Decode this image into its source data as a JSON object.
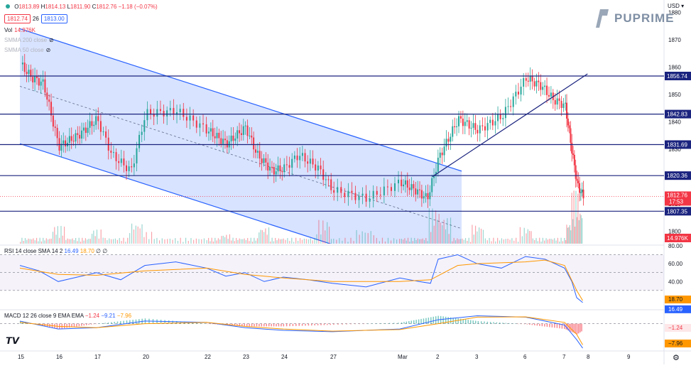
{
  "header": {
    "ohlc": {
      "o_label": "O",
      "o": "1813.89",
      "h_label": "H",
      "h": "1814.13",
      "l_label": "L",
      "l": "1811.90",
      "c_label": "C",
      "c": "1812.76",
      "change": "−1.18 (−0.07%)"
    },
    "bid": "1812.74",
    "spread": "26",
    "ask": "1813.00",
    "vol_label": "Vol",
    "vol_value": "14.976K",
    "smma200": "SMMA 200 close",
    "smma50": "SMMA 50 close",
    "currency": "USD",
    "brand": "PUPRIME"
  },
  "colors": {
    "up": "#26a69a",
    "down": "#f23645",
    "level": "#1a237e",
    "channel": "#2962ff",
    "channel_fill": "#2962ff",
    "rsi": "#2962ff",
    "rsi_ma": "#ff9800",
    "macd": "#2962ff",
    "signal": "#ff9800"
  },
  "chart_data": [
    {
      "type": "candlestick",
      "title": "",
      "x_ticks": [
        "15",
        "16",
        "17",
        "20",
        "22",
        "23",
        "24",
        "27",
        "Mar",
        "2",
        "3",
        "6",
        "7",
        "8",
        "9"
      ],
      "y_ticks": [
        1800,
        1810,
        1820,
        1830,
        1840,
        1850,
        1860,
        1870,
        1880
      ],
      "ylim": [
        1795.5,
        1884.5
      ],
      "levels": [
        {
          "value": 1856.74,
          "label": "1856.74"
        },
        {
          "value": 1842.83,
          "label": "1842.83"
        },
        {
          "value": 1831.69,
          "label": "1831.69"
        },
        {
          "value": 1820.36,
          "label": "1820.36"
        },
        {
          "value": 1807.35,
          "label": "1807.35"
        }
      ],
      "last_price": {
        "value": 1812.76,
        "label": "1812.76",
        "countdown": "17:53"
      },
      "volume_label": "14.976K",
      "close_path": [
        {
          "t": 0,
          "c": 1861
        },
        {
          "t": 0.3,
          "c": 1856
        },
        {
          "t": 0.6,
          "c": 1854
        },
        {
          "t": 1,
          "c": 1831
        },
        {
          "t": 1.5,
          "c": 1835
        },
        {
          "t": 2,
          "c": 1841
        },
        {
          "t": 2.3,
          "c": 1828
        },
        {
          "t": 2.7,
          "c": 1822
        },
        {
          "t": 3,
          "c": 1843
        },
        {
          "t": 3.5,
          "c": 1844
        },
        {
          "t": 4,
          "c": 1837
        },
        {
          "t": 4.5,
          "c": 1832
        },
        {
          "t": 5,
          "c": 1838
        },
        {
          "t": 5.3,
          "c": 1828
        },
        {
          "t": 5.7,
          "c": 1822
        },
        {
          "t": 6,
          "c": 1823
        },
        {
          "t": 6.3,
          "c": 1828
        },
        {
          "t": 6.7,
          "c": 1823
        },
        {
          "t": 7,
          "c": 1815
        },
        {
          "t": 7.5,
          "c": 1812
        },
        {
          "t": 8,
          "c": 1818
        },
        {
          "t": 8.4,
          "c": 1815
        },
        {
          "t": 8.7,
          "c": 1812
        },
        {
          "t": 9,
          "c": 1827
        },
        {
          "t": 9.5,
          "c": 1841
        },
        {
          "t": 10,
          "c": 1837
        },
        {
          "t": 10.5,
          "c": 1842
        },
        {
          "t": 11,
          "c": 1856
        },
        {
          "t": 11.4,
          "c": 1853
        },
        {
          "t": 11.7,
          "c": 1848
        },
        {
          "t": 12,
          "c": 1846
        },
        {
          "t": 12.3,
          "c": 1828
        },
        {
          "t": 12.5,
          "c": 1817
        },
        {
          "t": 12.75,
          "c": 1812.76
        }
      ],
      "volumes": [
        {
          "t": 1,
          "v": 15
        },
        {
          "t": 2,
          "v": 12
        },
        {
          "t": 2.8,
          "v": 18
        },
        {
          "t": 3,
          "v": 10
        },
        {
          "t": 4.5,
          "v": 8
        },
        {
          "t": 5.5,
          "v": 14
        },
        {
          "t": 6.8,
          "v": 20
        },
        {
          "t": 7.5,
          "v": 12
        },
        {
          "t": 8.9,
          "v": 30
        },
        {
          "t": 9.2,
          "v": 22
        },
        {
          "t": 10,
          "v": 16
        },
        {
          "t": 11,
          "v": 14
        },
        {
          "t": 12.2,
          "v": 18
        },
        {
          "t": 12.4,
          "v": 45
        },
        {
          "t": 12.6,
          "v": 30
        }
      ]
    },
    {
      "type": "line",
      "title": "RSI 14 close SMA 14 2",
      "ylim": [
        10,
        80
      ],
      "y_ticks": [
        40,
        60,
        80
      ],
      "band": [
        30,
        70
      ],
      "value": "16.49",
      "ma": "18.70",
      "extra": "∅ ∅",
      "series": [
        {
          "name": "RSI",
          "values": [
            [
              0,
              58
            ],
            [
              0.5,
              52
            ],
            [
              1,
              40
            ],
            [
              1.5,
              45
            ],
            [
              2,
              50
            ],
            [
              2.5,
              42
            ],
            [
              3,
              58
            ],
            [
              3.5,
              62
            ],
            [
              4,
              55
            ],
            [
              4.5,
              46
            ],
            [
              5,
              50
            ],
            [
              5.5,
              40
            ],
            [
              6,
              45
            ],
            [
              6.5,
              42
            ],
            [
              7,
              38
            ],
            [
              7.5,
              34
            ],
            [
              8,
              44
            ],
            [
              8.5,
              40
            ],
            [
              8.8,
              38
            ],
            [
              9,
              65
            ],
            [
              9.5,
              70
            ],
            [
              10,
              60
            ],
            [
              10.5,
              55
            ],
            [
              11,
              68
            ],
            [
              11.5,
              65
            ],
            [
              12,
              55
            ],
            [
              12.3,
              40
            ],
            [
              12.5,
              22
            ],
            [
              12.75,
              16.49
            ]
          ]
        },
        {
          "name": "SMA",
          "values": [
            [
              0,
              55
            ],
            [
              1,
              48
            ],
            [
              2,
              47
            ],
            [
              3,
              52
            ],
            [
              4,
              55
            ],
            [
              5,
              48
            ],
            [
              6,
              44
            ],
            [
              7,
              40
            ],
            [
              8,
              40
            ],
            [
              8.8,
              42
            ],
            [
              9.5,
              58
            ],
            [
              10,
              60
            ],
            [
              11,
              62
            ],
            [
              11.5,
              64
            ],
            [
              12,
              58
            ],
            [
              12.5,
              30
            ],
            [
              12.75,
              18.7
            ]
          ]
        }
      ]
    },
    {
      "type": "line",
      "title": "MACD 12 26 close 9 EMA EMA",
      "value_hist": "−1.24",
      "value_macd": "−9.21",
      "value_signal": "−7.96",
      "ylim": [
        -10,
        5
      ],
      "series": [
        {
          "name": "MACD",
          "values": [
            [
              0,
              1
            ],
            [
              1,
              -2
            ],
            [
              2,
              -1.5
            ],
            [
              3,
              1
            ],
            [
              4,
              0.5
            ],
            [
              5,
              -1.5
            ],
            [
              6,
              -2.5
            ],
            [
              7,
              -3
            ],
            [
              8,
              -2
            ],
            [
              9,
              1.5
            ],
            [
              10,
              3
            ],
            [
              11,
              2.5
            ],
            [
              12,
              -0.5
            ],
            [
              12.5,
              -6
            ],
            [
              12.75,
              -9.21
            ]
          ]
        },
        {
          "name": "Signal",
          "values": [
            [
              0,
              0.5
            ],
            [
              1,
              -1
            ],
            [
              2,
              -1.5
            ],
            [
              3,
              0
            ],
            [
              4,
              0.5
            ],
            [
              5,
              -1
            ],
            [
              6,
              -2
            ],
            [
              7,
              -2.8
            ],
            [
              8,
              -2.2
            ],
            [
              9,
              0
            ],
            [
              10,
              2.5
            ],
            [
              11,
              2.6
            ],
            [
              12,
              0.5
            ],
            [
              12.5,
              -4
            ],
            [
              12.75,
              -7.96
            ]
          ]
        }
      ]
    }
  ]
}
